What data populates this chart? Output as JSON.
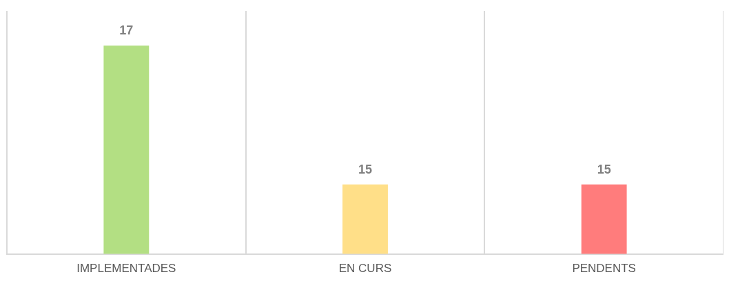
{
  "chart_data": {
    "type": "bar",
    "categories": [
      "IMPLEMENTADES",
      "EN CURS",
      "PENDENTS"
    ],
    "values": [
      17,
      15,
      15
    ],
    "colors": [
      "#b3df83",
      "#ffdf88",
      "#ff7c7c"
    ],
    "ylim": [
      14,
      17.5
    ],
    "tick_labels": "x",
    "data_labels": true,
    "grid": "x",
    "legend": false
  }
}
